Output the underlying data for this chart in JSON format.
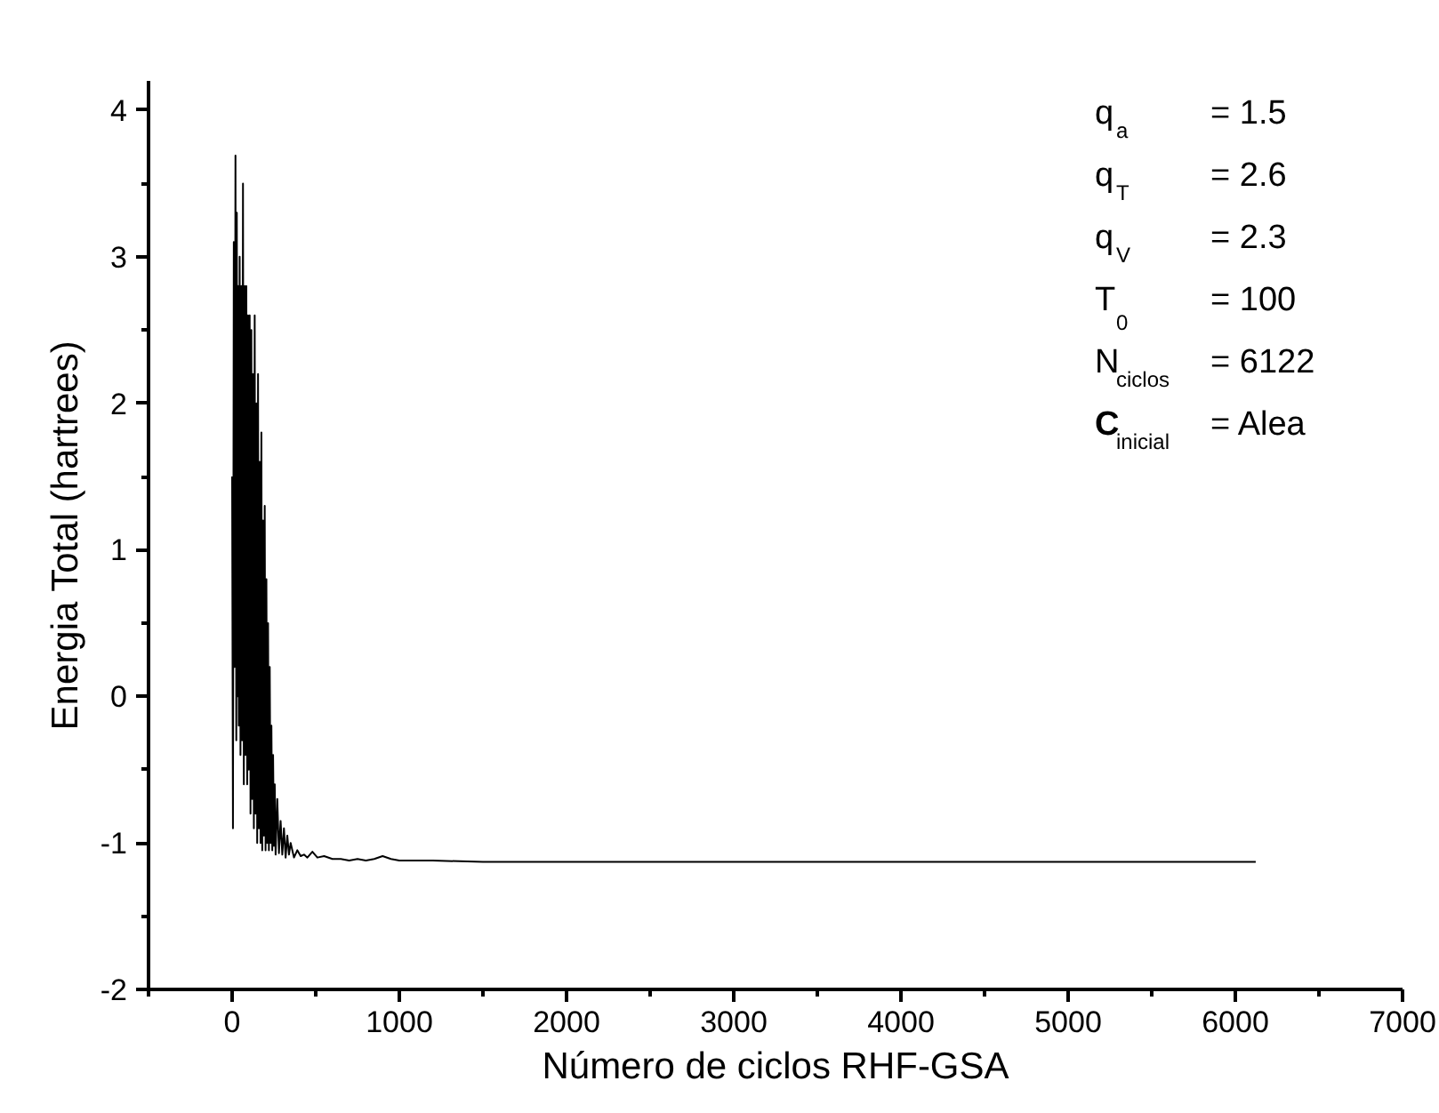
{
  "chart_data": {
    "type": "line",
    "xlabel": "Número de ciclos RHF-GSA",
    "ylabel": "Energia Total (hartrees)",
    "xlim": [
      -500,
      7000
    ],
    "ylim": [
      -2,
      4.2
    ],
    "xticks": [
      0,
      1000,
      2000,
      3000,
      4000,
      5000,
      6000,
      7000
    ],
    "yticks": [
      -2,
      -1,
      0,
      1,
      2,
      3,
      4
    ],
    "grid": false,
    "marker": "none",
    "line_style": "solid",
    "x": [
      0,
      5,
      10,
      15,
      20,
      25,
      28,
      32,
      36,
      40,
      45,
      50,
      55,
      60,
      65,
      70,
      75,
      80,
      85,
      90,
      95,
      100,
      105,
      110,
      115,
      120,
      125,
      130,
      135,
      140,
      145,
      150,
      155,
      160,
      165,
      170,
      175,
      180,
      185,
      190,
      195,
      200,
      205,
      210,
      215,
      220,
      225,
      230,
      235,
      240,
      245,
      250,
      255,
      260,
      270,
      280,
      290,
      300,
      310,
      320,
      330,
      340,
      350,
      370,
      390,
      410,
      430,
      450,
      480,
      510,
      550,
      600,
      650,
      700,
      750,
      800,
      850,
      900,
      950,
      1000,
      1200,
      1500,
      2000,
      3000,
      4000,
      5000,
      6122
    ],
    "series": [
      {
        "color": "#000000",
        "values": [
          1.5,
          -0.9,
          3.1,
          0.2,
          3.69,
          -0.3,
          3.3,
          0.0,
          2.8,
          -0.2,
          3.0,
          -0.4,
          2.8,
          -0.3,
          3.5,
          -0.6,
          2.8,
          -0.4,
          2.8,
          -0.6,
          2.6,
          -0.5,
          2.6,
          -0.8,
          2.5,
          -0.7,
          2.2,
          -0.9,
          2.6,
          -0.8,
          2.0,
          -1.0,
          2.2,
          -0.9,
          1.6,
          -1.0,
          1.8,
          -1.05,
          1.2,
          -0.95,
          1.3,
          -1.05,
          0.8,
          -1.0,
          0.5,
          -1.05,
          0.2,
          -1.0,
          -0.2,
          -1.05,
          -0.4,
          -1.02,
          -0.6,
          -1.08,
          -0.7,
          -1.07,
          -0.85,
          -1.08,
          -0.9,
          -1.1,
          -0.95,
          -1.08,
          -1.0,
          -1.1,
          -1.05,
          -1.09,
          -1.08,
          -1.1,
          -1.06,
          -1.1,
          -1.09,
          -1.11,
          -1.11,
          -1.12,
          -1.11,
          -1.12,
          -1.11,
          -1.09,
          -1.11,
          -1.12,
          -1.12,
          -1.13,
          -1.13,
          -1.13,
          -1.13,
          -1.13,
          -1.13
        ]
      }
    ],
    "annotations": [
      "q$_{a}$ = 1.5",
      "q$_{T}$ = 2.6",
      "q$_{V}$ = 2.3",
      "T$_{0}$ = 100",
      "N$_{ciclos}$ = 6122",
      "C$_{inicial}$ = Alea"
    ]
  }
}
